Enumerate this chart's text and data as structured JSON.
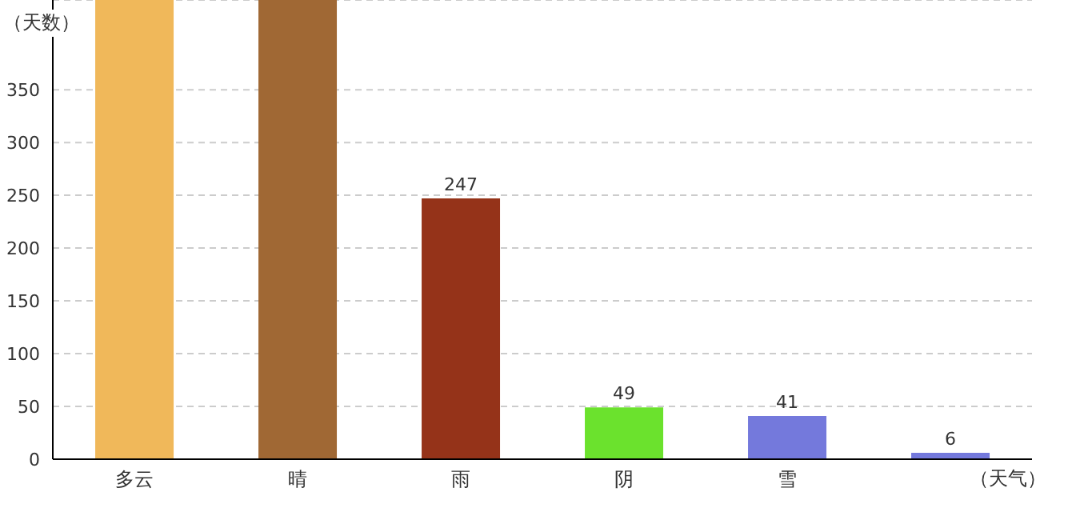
{
  "chart_data": {
    "type": "bar",
    "xlabel": "（天气）",
    "ylabel": "（天数）",
    "categories": [
      "多云",
      "晴",
      "雨",
      "阴",
      "雪",
      null
    ],
    "values": [
      435,
      435,
      247,
      49,
      41,
      6
    ],
    "colors": [
      "#f0b85a",
      "#a06834",
      "#953319",
      "#6be22d",
      "#7479dc",
      "#7479dc"
    ],
    "value_labels": [
      null,
      null,
      "247",
      "49",
      "41",
      "6"
    ],
    "ylim": [
      0,
      435
    ],
    "yticks": [
      0,
      50,
      100,
      150,
      200,
      250,
      300,
      350
    ],
    "grid": "y"
  }
}
